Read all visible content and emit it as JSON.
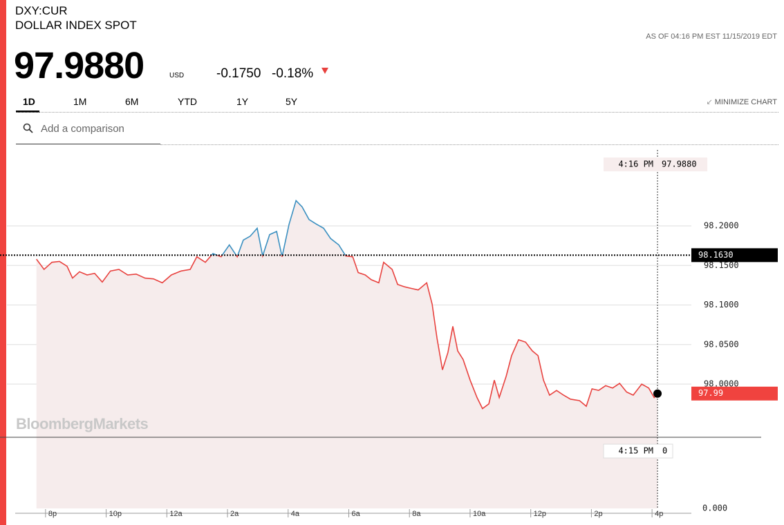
{
  "header": {
    "symbol": "DXY:CUR",
    "name": "DOLLAR INDEX SPOT",
    "as_of": "AS OF 04:16 PM EST 11/15/2019 EDT",
    "price": "97.9880",
    "currency": "USD",
    "change": "-0.1750",
    "change_pct": "-0.18%",
    "tabs": [
      "1D",
      "1M",
      "6M",
      "YTD",
      "1Y",
      "5Y"
    ],
    "minimize": "MINIMIZE CHART",
    "search_placeholder": "Add a comparison"
  },
  "watermark": "BloombergMarkets",
  "chart_data": {
    "type": "line",
    "x": [
      19.7,
      19.95,
      20.21,
      20.46,
      20.71,
      20.89,
      21.12,
      21.37,
      21.62,
      21.87,
      22.14,
      22.42,
      22.71,
      22.99,
      23.28,
      23.56,
      23.85,
      24.15,
      24.47,
      24.77,
      24.99,
      25.27,
      25.52,
      25.79,
      26.06,
      26.32,
      26.52,
      26.75,
      26.98,
      27.16,
      27.39,
      27.62,
      27.8,
      28.03,
      28.26,
      28.46,
      28.69,
      28.94,
      29.17,
      29.4,
      29.67,
      29.9,
      30.13,
      30.31,
      30.54,
      30.74,
      30.99,
      31.15,
      31.43,
      31.61,
      31.84,
      32.06,
      32.29,
      32.57,
      32.75,
      32.91,
      33.09,
      33.27,
      33.43,
      33.59,
      33.77,
      34.0,
      34.23,
      34.41,
      34.62,
      34.8,
      34.96,
      35.19,
      35.37,
      35.6,
      35.83,
      36.05,
      36.24,
      36.42,
      36.62,
      36.85,
      37.08,
      37.31,
      37.61,
      37.83,
      38.02,
      38.24,
      38.47,
      38.7,
      38.93,
      39.16,
      39.38,
      39.66,
      39.89,
      40.07,
      40.18
    ],
    "values": [
      98.158,
      98.145,
      98.154,
      98.155,
      98.149,
      98.134,
      98.142,
      98.138,
      98.14,
      98.129,
      98.143,
      98.145,
      98.138,
      98.139,
      98.134,
      98.133,
      98.128,
      98.138,
      98.143,
      98.145,
      98.161,
      98.154,
      98.165,
      98.161,
      98.176,
      98.161,
      98.182,
      98.187,
      98.197,
      98.162,
      98.189,
      98.193,
      98.161,
      98.202,
      98.232,
      98.224,
      98.208,
      98.202,
      98.197,
      98.184,
      98.176,
      98.162,
      98.161,
      98.141,
      98.138,
      98.132,
      98.128,
      98.154,
      98.145,
      98.126,
      98.123,
      98.121,
      98.119,
      98.128,
      98.101,
      98.058,
      98.018,
      98.04,
      98.073,
      98.042,
      98.031,
      98.005,
      97.983,
      97.969,
      97.975,
      98.005,
      97.983,
      98.01,
      98.036,
      98.056,
      98.053,
      98.042,
      98.036,
      98.005,
      97.986,
      97.992,
      97.986,
      97.981,
      97.979,
      97.972,
      97.994,
      97.992,
      97.998,
      97.995,
      98.001,
      97.99,
      97.986,
      98.0,
      97.995,
      97.983,
      97.988
    ],
    "color": "#e8413e",
    "color_above_reference": "#3a8fc0",
    "fill": "#f6ecec",
    "xlim": [
      19.0,
      41.0
    ],
    "xticks": [
      {
        "value": 20,
        "label": "8p"
      },
      {
        "value": 22,
        "label": "10p"
      },
      {
        "value": 24,
        "label": "12a"
      },
      {
        "value": 26,
        "label": "2a"
      },
      {
        "value": 28,
        "label": "4a"
      },
      {
        "value": 30,
        "label": "6a"
      },
      {
        "value": 32,
        "label": "8a"
      },
      {
        "value": 34,
        "label": "10a"
      },
      {
        "value": 36,
        "label": "12p"
      },
      {
        "value": 38,
        "label": "2p"
      },
      {
        "value": 40,
        "label": "4p"
      }
    ],
    "ylim": [
      97.84,
      98.3
    ],
    "yticks": [
      {
        "value": 98.0,
        "label": "98.0000"
      },
      {
        "value": 98.05,
        "label": "98.0500"
      },
      {
        "value": 98.1,
        "label": "98.1000"
      },
      {
        "value": 98.15,
        "label": "98.1500"
      },
      {
        "value": 98.2,
        "label": "98.2000"
      }
    ],
    "grid": true,
    "reference_line": {
      "value": 98.163,
      "label": "98.1630"
    },
    "current": {
      "value": 97.988,
      "label": "97.99"
    },
    "crosshair": {
      "x": 40.18,
      "time": "4:16 PM",
      "price": "97.9880"
    },
    "volume": {
      "time": "4:15 PM",
      "value": 0,
      "ticks": [
        {
          "value": 0,
          "label": "0.000"
        }
      ]
    }
  }
}
